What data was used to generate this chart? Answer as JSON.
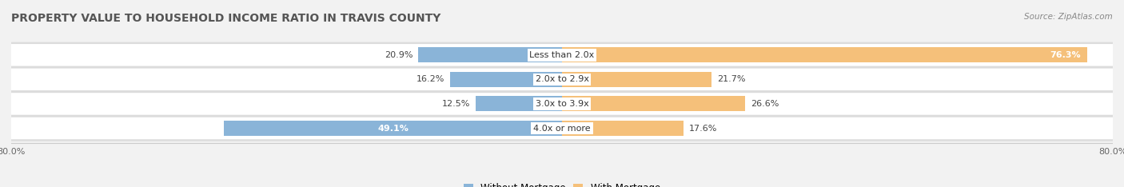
{
  "title": "PROPERTY VALUE TO HOUSEHOLD INCOME RATIO IN TRAVIS COUNTY",
  "source": "Source: ZipAtlas.com",
  "categories": [
    "Less than 2.0x",
    "2.0x to 2.9x",
    "3.0x to 3.9x",
    "4.0x or more"
  ],
  "without_mortgage": [
    20.9,
    16.2,
    12.5,
    49.1
  ],
  "with_mortgage": [
    76.3,
    21.7,
    26.6,
    17.6
  ],
  "color_without": "#8ab4d8",
  "color_with": "#f5c07a",
  "axis_limit": 80.0,
  "bg_color": "#f2f2f2",
  "row_bg_color": "#e8e8e8",
  "title_fontsize": 10,
  "source_fontsize": 7.5,
  "label_fontsize": 8,
  "category_fontsize": 8,
  "legend_fontsize": 8.5,
  "axis_label_fontsize": 8
}
